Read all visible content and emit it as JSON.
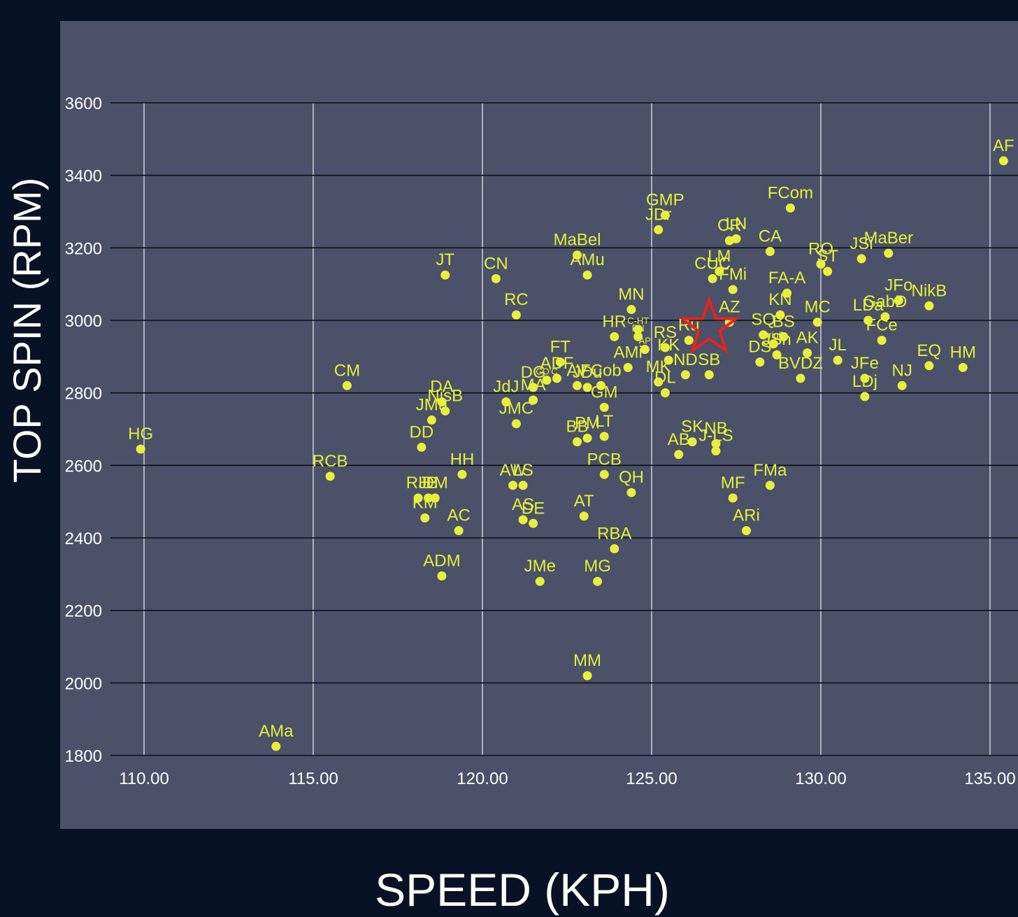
{
  "chart_data": {
    "type": "scatter",
    "xlabel": "SPEED (KPH)",
    "ylabel": "TOP SPIN (RPM)",
    "xlim": [
      109,
      135.8
    ],
    "ylim": [
      1800,
      3600
    ],
    "x_ticks": [
      "110.00",
      "115.00",
      "120.00",
      "125.00",
      "130.00",
      "135.00"
    ],
    "y_ticks": [
      "1800",
      "2000",
      "2200",
      "2400",
      "2600",
      "2800",
      "3000",
      "3200",
      "3400",
      "3600"
    ],
    "grid": true,
    "colors": {
      "background": "#071224",
      "plot_area": "#4a5168",
      "point": "#e8f03a",
      "label": "#e4ef3a",
      "highlight_star": "#e8231d",
      "gridline_horizontal": "#0b0f18",
      "gridline_vertical": "#ffffff"
    },
    "highlight": {
      "symbol": "star",
      "x": 126.7,
      "y": 2980
    },
    "points": [
      {
        "label": "AF",
        "x": 135.4,
        "y": 3440
      },
      {
        "label": "FCom",
        "x": 129.1,
        "y": 3310
      },
      {
        "label": "GMP",
        "x": 125.4,
        "y": 3290
      },
      {
        "label": "JDr",
        "x": 125.2,
        "y": 3250
      },
      {
        "label": "CR",
        "x": 127.3,
        "y": 3220
      },
      {
        "label": "LN",
        "x": 127.5,
        "y": 3225
      },
      {
        "label": "CA",
        "x": 128.5,
        "y": 3190
      },
      {
        "label": "MaBel",
        "x": 122.8,
        "y": 3180
      },
      {
        "label": "JSi",
        "x": 131.2,
        "y": 3170
      },
      {
        "label": "MaBer",
        "x": 132.0,
        "y": 3185
      },
      {
        "label": "RO",
        "x": 130.0,
        "y": 3155
      },
      {
        "label": "ST",
        "x": 130.2,
        "y": 3135
      },
      {
        "label": "AMu",
        "x": 123.1,
        "y": 3125
      },
      {
        "label": "JT",
        "x": 118.9,
        "y": 3125
      },
      {
        "label": "CN",
        "x": 120.4,
        "y": 3115
      },
      {
        "label": "LM",
        "x": 127.0,
        "y": 3135
      },
      {
        "label": "CUC",
        "x": 126.8,
        "y": 3115
      },
      {
        "label": "FMi",
        "x": 127.4,
        "y": 3085
      },
      {
        "label": "FA-A",
        "x": 129.0,
        "y": 3075
      },
      {
        "label": "JFo",
        "x": 132.3,
        "y": 3055
      },
      {
        "label": "NikB",
        "x": 133.2,
        "y": 3040
      },
      {
        "label": "MN",
        "x": 124.4,
        "y": 3030
      },
      {
        "label": "RC",
        "x": 121.0,
        "y": 3015
      },
      {
        "label": "AZ",
        "x": 127.3,
        "y": 2995
      },
      {
        "label": "KN",
        "x": 128.8,
        "y": 3015
      },
      {
        "label": "MC",
        "x": 129.9,
        "y": 2995
      },
      {
        "label": "GabD",
        "x": 131.9,
        "y": 3010
      },
      {
        "label": "LDa",
        "x": 131.4,
        "y": 3000
      },
      {
        "label": "HR",
        "x": 123.9,
        "y": 2955
      },
      {
        "label": "C-HT",
        "x": 124.6,
        "y": 2975
      },
      {
        "label": "BN",
        "x": 124.6,
        "y": 2955
      },
      {
        "label": "RS",
        "x": 125.4,
        "y": 2925
      },
      {
        "label": "Ru",
        "x": 126.1,
        "y": 2945
      },
      {
        "label": "SQ",
        "x": 128.3,
        "y": 2960
      },
      {
        "label": "BS",
        "x": 128.9,
        "y": 2955
      },
      {
        "label": "FCe",
        "x": 131.8,
        "y": 2945
      },
      {
        "label": "AK",
        "x": 129.6,
        "y": 2910
      },
      {
        "label": "GrigD",
        "x": 128.6,
        "y": 2935
      },
      {
        "label": "JL",
        "x": 130.5,
        "y": 2890
      },
      {
        "label": "EQ",
        "x": 133.2,
        "y": 2875
      },
      {
        "label": "HM",
        "x": 134.2,
        "y": 2870
      },
      {
        "label": "AMi",
        "x": 124.3,
        "y": 2870
      },
      {
        "label": "AP",
        "x": 124.8,
        "y": 2920
      },
      {
        "label": "KK",
        "x": 125.5,
        "y": 2890
      },
      {
        "label": "FT",
        "x": 122.3,
        "y": 2885
      },
      {
        "label": "JSh",
        "x": 128.7,
        "y": 2905
      },
      {
        "label": "DS",
        "x": 128.2,
        "y": 2885
      },
      {
        "label": "JFe",
        "x": 131.3,
        "y": 2840
      },
      {
        "label": "NJ",
        "x": 132.4,
        "y": 2820
      },
      {
        "label": "BVDZ",
        "x": 129.4,
        "y": 2840
      },
      {
        "label": "SB",
        "x": 126.7,
        "y": 2850
      },
      {
        "label": "ND",
        "x": 126.0,
        "y": 2850
      },
      {
        "label": "MK",
        "x": 125.2,
        "y": 2830
      },
      {
        "label": "FCob",
        "x": 123.5,
        "y": 2820
      },
      {
        "label": "AV",
        "x": 122.8,
        "y": 2820
      },
      {
        "label": "JDu",
        "x": 123.1,
        "y": 2815
      },
      {
        "label": "CO'C",
        "x": 121.9,
        "y": 2835
      },
      {
        "label": "DG",
        "x": 121.5,
        "y": 2815
      },
      {
        "label": "ADF",
        "x": 122.2,
        "y": 2840
      },
      {
        "label": "DL",
        "x": 125.4,
        "y": 2800
      },
      {
        "label": "JdJ",
        "x": 120.7,
        "y": 2775
      },
      {
        "label": "MA",
        "x": 121.5,
        "y": 2780
      },
      {
        "label": "GM",
        "x": 123.6,
        "y": 2760
      },
      {
        "label": "LDj",
        "x": 131.3,
        "y": 2790
      },
      {
        "label": "CM",
        "x": 116.0,
        "y": 2820
      },
      {
        "label": "DA",
        "x": 118.8,
        "y": 2775
      },
      {
        "label": "NisB",
        "x": 118.9,
        "y": 2750
      },
      {
        "label": "JMu",
        "x": 118.5,
        "y": 2725
      },
      {
        "label": "JMC",
        "x": 121.0,
        "y": 2715
      },
      {
        "label": "BB",
        "x": 122.8,
        "y": 2665
      },
      {
        "label": "PM",
        "x": 123.1,
        "y": 2675
      },
      {
        "label": "LT",
        "x": 123.6,
        "y": 2680
      },
      {
        "label": "SK",
        "x": 126.2,
        "y": 2665
      },
      {
        "label": "NB",
        "x": 126.9,
        "y": 2660
      },
      {
        "label": "AB",
        "x": 125.8,
        "y": 2630
      },
      {
        "label": "J-LS",
        "x": 126.9,
        "y": 2640
      },
      {
        "label": "DD",
        "x": 118.2,
        "y": 2650
      },
      {
        "label": "HG",
        "x": 109.9,
        "y": 2645
      },
      {
        "label": "HH",
        "x": 119.4,
        "y": 2575
      },
      {
        "label": "RCB",
        "x": 115.5,
        "y": 2570
      },
      {
        "label": "PCB",
        "x": 123.6,
        "y": 2575
      },
      {
        "label": "FMa",
        "x": 128.5,
        "y": 2545
      },
      {
        "label": "QH",
        "x": 124.4,
        "y": 2525
      },
      {
        "label": "AW",
        "x": 120.9,
        "y": 2545
      },
      {
        "label": "LS",
        "x": 121.2,
        "y": 2545
      },
      {
        "label": "MF",
        "x": 127.4,
        "y": 2510
      },
      {
        "label": "JB",
        "x": 118.4,
        "y": 2510
      },
      {
        "label": "RH",
        "x": 118.1,
        "y": 2510
      },
      {
        "label": "DM",
        "x": 118.6,
        "y": 2510
      },
      {
        "label": "AT",
        "x": 123.0,
        "y": 2460
      },
      {
        "label": "KM",
        "x": 118.3,
        "y": 2455
      },
      {
        "label": "AS",
        "x": 121.2,
        "y": 2450
      },
      {
        "label": "DE",
        "x": 121.5,
        "y": 2440
      },
      {
        "label": "ARi",
        "x": 127.8,
        "y": 2420
      },
      {
        "label": "AC",
        "x": 119.3,
        "y": 2420
      },
      {
        "label": "RBA",
        "x": 123.9,
        "y": 2370
      },
      {
        "label": "ADM",
        "x": 118.8,
        "y": 2295
      },
      {
        "label": "JMe",
        "x": 121.7,
        "y": 2280
      },
      {
        "label": "MG",
        "x": 123.4,
        "y": 2280
      },
      {
        "label": "MM",
        "x": 123.1,
        "y": 2020
      },
      {
        "label": "AMa",
        "x": 113.9,
        "y": 1825
      }
    ]
  }
}
